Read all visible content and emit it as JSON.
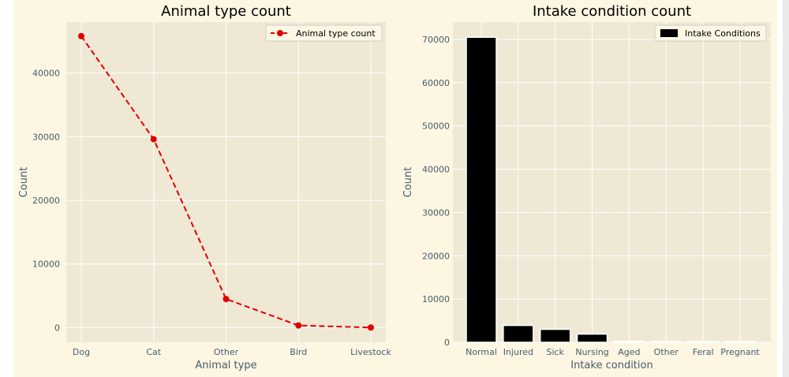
{
  "colors": {
    "figure_bg": "#fdf6e3",
    "axes_bg": "#eee8d5",
    "grid": "#ffffff",
    "tick_text": "#475c6c",
    "title_text": "#000000",
    "line": "#e00000",
    "bar": "#000000"
  },
  "chart_data": [
    {
      "type": "line",
      "title": "Animal type count",
      "xlabel": "Animal type",
      "ylabel": "Count",
      "categories": [
        "Dog",
        "Cat",
        "Other",
        "Bird",
        "Livestock"
      ],
      "series": [
        {
          "name": "Animal type count",
          "values": [
            45800,
            29600,
            4500,
            350,
            20
          ],
          "style": "dashed",
          "marker": "circle",
          "color": "#e00000"
        }
      ],
      "yticks": [
        0,
        10000,
        20000,
        30000,
        40000
      ],
      "ylim": [
        -2300,
        48000
      ],
      "legend": "top-right",
      "grid": true
    },
    {
      "type": "bar",
      "title": "Intake condition count",
      "xlabel": "Intake condition",
      "ylabel": "Count",
      "categories": [
        "Normal",
        "Injured",
        "Sick",
        "Nursing",
        "Aged",
        "Other",
        "Feral",
        "Pregnant"
      ],
      "series": [
        {
          "name": "Intake Conditions",
          "values": [
            70500,
            3900,
            3000,
            1900,
            250,
            120,
            80,
            60
          ],
          "color": "#000000"
        }
      ],
      "yticks": [
        0,
        10000,
        20000,
        30000,
        40000,
        50000,
        60000,
        70000
      ],
      "ylim": [
        0,
        74000
      ],
      "legend": "top-right",
      "grid": true
    }
  ]
}
